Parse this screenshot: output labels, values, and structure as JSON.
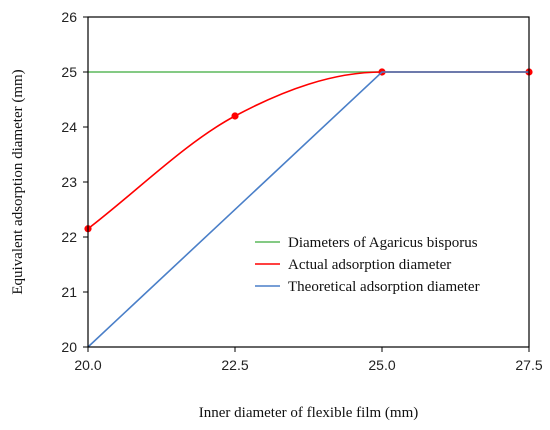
{
  "chart_data": {
    "type": "line",
    "xlabel": "Inner diameter of flexible film (mm)",
    "ylabel": "Equivalent adsorption diameter (mm)",
    "xlim": [
      20.0,
      27.5
    ],
    "ylim": [
      20,
      26
    ],
    "xticks": [
      "20.0",
      "22.5",
      "25.0",
      "27.5"
    ],
    "yticks": [
      "20",
      "21",
      "22",
      "23",
      "24",
      "25",
      "26"
    ],
    "grid": false,
    "legend_position": "lower-right",
    "series": [
      {
        "name": "Diameters of Agaricus bisporus",
        "color": "#5cb85c",
        "x": [
          20.0,
          27.5
        ],
        "y": [
          25,
          25
        ],
        "markers": false
      },
      {
        "name": "Actual adsorption diameter",
        "color": "#ff0000",
        "x": [
          20.0,
          22.5,
          25.0,
          27.5
        ],
        "y": [
          22.15,
          24.2,
          25.0,
          25.0
        ],
        "markers": true,
        "smooth": true
      },
      {
        "name": "Theoretical adsorption diameter",
        "color": "#4a7fc8",
        "x": [
          20.0,
          25.0,
          27.5
        ],
        "y": [
          20,
          25,
          25
        ],
        "markers": false
      }
    ]
  }
}
